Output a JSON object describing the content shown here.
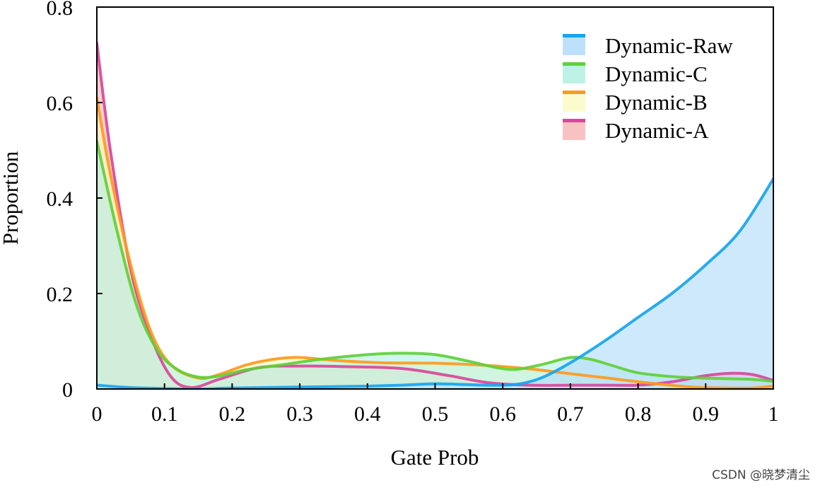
{
  "chart_data": {
    "type": "area",
    "title": "",
    "xlabel": "Gate Prob",
    "ylabel": "Proportion",
    "xlim": [
      0,
      1
    ],
    "ylim": [
      0,
      0.8
    ],
    "xticks": [
      0,
      0.1,
      0.2,
      0.3,
      0.4,
      0.5,
      0.6,
      0.7,
      0.8,
      0.9,
      1
    ],
    "xtick_labels": [
      "0",
      "0.1",
      "0.2",
      "0.3",
      "0.4",
      "0.5",
      "0.6",
      "0.7",
      "0.8",
      "0.9",
      "1"
    ],
    "yticks": [
      0,
      0.2,
      0.4,
      0.6,
      0.8
    ],
    "ytick_labels": [
      "0",
      "0.2",
      "0.4",
      "0.6",
      "0.8"
    ],
    "legend_position": "top-right",
    "series": [
      {
        "name": "Dynamic-A",
        "line_color": "#d9479a",
        "fill_color": "#f8b7b7",
        "x": [
          0,
          0.02,
          0.05,
          0.08,
          0.11,
          0.14,
          0.18,
          0.24,
          0.3,
          0.36,
          0.45,
          0.52,
          0.58,
          0.64,
          0.7,
          0.75,
          0.8,
          0.85,
          0.9,
          0.94,
          0.97,
          1.0
        ],
        "y": [
          0.725,
          0.5,
          0.25,
          0.11,
          0.025,
          0.003,
          0.02,
          0.045,
          0.048,
          0.047,
          0.043,
          0.028,
          0.013,
          0.008,
          0.008,
          0.008,
          0.008,
          0.015,
          0.028,
          0.033,
          0.03,
          0.018
        ]
      },
      {
        "name": "Dynamic-B",
        "line_color": "#ff9a1a",
        "fill_color": "#fafac4",
        "x": [
          0,
          0.02,
          0.05,
          0.08,
          0.11,
          0.15,
          0.18,
          0.22,
          0.26,
          0.3,
          0.35,
          0.42,
          0.5,
          0.58,
          0.64,
          0.7,
          0.76,
          0.82,
          0.88,
          0.93,
          0.97,
          1.0
        ],
        "y": [
          0.61,
          0.45,
          0.26,
          0.12,
          0.05,
          0.023,
          0.03,
          0.05,
          0.062,
          0.066,
          0.06,
          0.055,
          0.054,
          0.049,
          0.042,
          0.032,
          0.022,
          0.012,
          0.004,
          0.002,
          0.002,
          0.006
        ]
      },
      {
        "name": "Dynamic-C",
        "line_color": "#5fd038",
        "fill_color": "#b4f0e3",
        "x": [
          0,
          0.03,
          0.06,
          0.09,
          0.12,
          0.15,
          0.18,
          0.22,
          0.27,
          0.33,
          0.4,
          0.45,
          0.5,
          0.55,
          0.59,
          0.62,
          0.66,
          0.7,
          0.73,
          0.76,
          0.8,
          0.86,
          0.92,
          0.97,
          1.0
        ],
        "y": [
          0.52,
          0.33,
          0.17,
          0.08,
          0.04,
          0.025,
          0.027,
          0.04,
          0.05,
          0.062,
          0.072,
          0.075,
          0.072,
          0.058,
          0.045,
          0.041,
          0.052,
          0.066,
          0.062,
          0.05,
          0.034,
          0.025,
          0.022,
          0.02,
          0.016
        ]
      },
      {
        "name": "Dynamic-Raw",
        "line_color": "#17a4ef",
        "fill_color": "#b2dcfa",
        "x": [
          0,
          0.05,
          0.1,
          0.15,
          0.2,
          0.3,
          0.4,
          0.45,
          0.5,
          0.55,
          0.6,
          0.63,
          0.66,
          0.7,
          0.75,
          0.8,
          0.85,
          0.9,
          0.95,
          1.0
        ],
        "y": [
          0.008,
          0.003,
          0.001,
          0.0,
          0.002,
          0.004,
          0.006,
          0.008,
          0.011,
          0.009,
          0.008,
          0.012,
          0.025,
          0.055,
          0.1,
          0.15,
          0.2,
          0.26,
          0.33,
          0.44
        ]
      }
    ],
    "legend_order": [
      "Dynamic-Raw",
      "Dynamic-C",
      "Dynamic-B",
      "Dynamic-A"
    ]
  },
  "watermark": "CSDN @晓梦清尘"
}
